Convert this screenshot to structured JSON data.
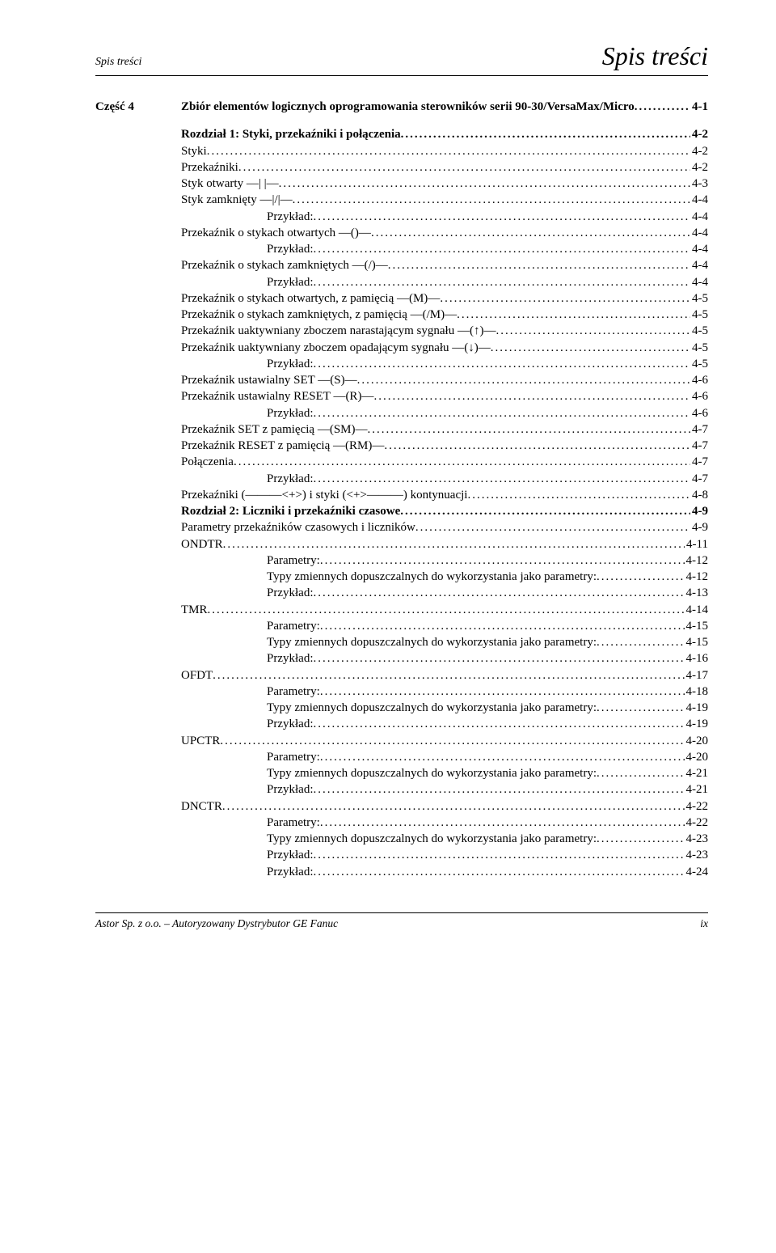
{
  "header": {
    "left": "Spis treści",
    "right": "Spis treści"
  },
  "part": {
    "label": "Część 4",
    "title": "Zbiór elementów logicznych oprogramowania sterowników serii 90-30/VersaMax/Micro",
    "page": "4-1"
  },
  "toc": [
    {
      "level": 0,
      "bold": true,
      "label": "Rozdział 1:  Styki, przekaźniki i połączenia",
      "page": "4-2"
    },
    {
      "level": 1,
      "bold": false,
      "label": "Styki",
      "page": "4-2"
    },
    {
      "level": 1,
      "bold": false,
      "label": "Przekaźniki",
      "page": "4-2"
    },
    {
      "level": 1,
      "bold": false,
      "label": "Styk otwarty —| |—",
      "page": "4-3"
    },
    {
      "level": 1,
      "bold": false,
      "label": "Styk zamknięty —|/|—",
      "page": "4-4"
    },
    {
      "level": 2,
      "bold": false,
      "label": "Przykład:",
      "page": "4-4"
    },
    {
      "level": 1,
      "bold": false,
      "label": "Przekaźnik o stykach otwartych —()—",
      "page": "4-4"
    },
    {
      "level": 2,
      "bold": false,
      "label": "Przykład:",
      "page": "4-4"
    },
    {
      "level": 1,
      "bold": false,
      "label": "Przekaźnik o stykach zamkniętych —(/)—",
      "page": "4-4"
    },
    {
      "level": 2,
      "bold": false,
      "label": "Przykład:",
      "page": "4-4"
    },
    {
      "level": 1,
      "bold": false,
      "label": "Przekaźnik o stykach otwartych, z pamięcią —(M)—",
      "page": "4-5"
    },
    {
      "level": 1,
      "bold": false,
      "label": "Przekaźnik o stykach zamkniętych, z pamięcią —(/M)—",
      "page": "4-5"
    },
    {
      "level": 1,
      "bold": false,
      "label": "Przekaźnik uaktywniany zboczem narastającym sygnału —(↑)—",
      "page": "4-5"
    },
    {
      "level": 1,
      "bold": false,
      "label": "Przekaźnik uaktywniany zboczem opadającym sygnału —(↓)—",
      "page": "4-5"
    },
    {
      "level": 2,
      "bold": false,
      "label": "Przykład:",
      "page": "4-5"
    },
    {
      "level": 1,
      "bold": false,
      "label": "Przekaźnik ustawialny SET —(S)—",
      "page": "4-6"
    },
    {
      "level": 1,
      "bold": false,
      "label": "Przekaźnik ustawialny RESET —(R)—",
      "page": "4-6"
    },
    {
      "level": 2,
      "bold": false,
      "label": "Przykład:",
      "page": "4-6"
    },
    {
      "level": 1,
      "bold": false,
      "label": "Przekaźnik SET z pamięcią —(SM)—",
      "page": "4-7"
    },
    {
      "level": 1,
      "bold": false,
      "label": "Przekaźnik RESET z pamięcią —(RM)—",
      "page": "4-7"
    },
    {
      "level": 1,
      "bold": false,
      "label": "Połączenia",
      "page": "4-7"
    },
    {
      "level": 2,
      "bold": false,
      "label": "Przykład:",
      "page": "4-7"
    },
    {
      "level": 1,
      "bold": false,
      "label": "Przekaźniki (———<+>) i styki (<+>———) kontynuacji",
      "page": "4-8"
    },
    {
      "level": 0,
      "bold": true,
      "label": "Rozdział 2:  Liczniki i przekaźniki czasowe",
      "page": "4-9"
    },
    {
      "level": 1,
      "bold": false,
      "label": "Parametry przekaźników czasowych i liczników",
      "page": "4-9"
    },
    {
      "level": 1,
      "bold": false,
      "label": "ONDTR",
      "page": "4-11"
    },
    {
      "level": 2,
      "bold": false,
      "label": "Parametry:",
      "page": "4-12"
    },
    {
      "level": 2,
      "bold": false,
      "label": "Typy zmiennych dopuszczalnych do wykorzystania jako parametry:",
      "page": "4-12"
    },
    {
      "level": 2,
      "bold": false,
      "label": "Przykład:",
      "page": "4-13"
    },
    {
      "level": 1,
      "bold": false,
      "label": "TMR",
      "page": "4-14"
    },
    {
      "level": 2,
      "bold": false,
      "label": "Parametry:",
      "page": "4-15"
    },
    {
      "level": 2,
      "bold": false,
      "label": "Typy zmiennych dopuszczalnych do wykorzystania jako parametry:",
      "page": "4-15"
    },
    {
      "level": 2,
      "bold": false,
      "label": "Przykład:",
      "page": "4-16"
    },
    {
      "level": 1,
      "bold": false,
      "label": "OFDT",
      "page": "4-17"
    },
    {
      "level": 2,
      "bold": false,
      "label": "Parametry:",
      "page": "4-18"
    },
    {
      "level": 2,
      "bold": false,
      "label": "Typy zmiennych dopuszczalnych do wykorzystania jako parametry:",
      "page": "4-19"
    },
    {
      "level": 2,
      "bold": false,
      "label": "Przykład:",
      "page": "4-19"
    },
    {
      "level": 1,
      "bold": false,
      "label": "UPCTR",
      "page": "4-20"
    },
    {
      "level": 2,
      "bold": false,
      "label": "Parametry:",
      "page": "4-20"
    },
    {
      "level": 2,
      "bold": false,
      "label": "Typy zmiennych dopuszczalnych do wykorzystania jako parametry:",
      "page": "4-21"
    },
    {
      "level": 2,
      "bold": false,
      "label": "Przykład:",
      "page": "4-21"
    },
    {
      "level": 1,
      "bold": false,
      "label": "DNCTR",
      "page": "4-22"
    },
    {
      "level": 2,
      "bold": false,
      "label": "Parametry:",
      "page": "4-22"
    },
    {
      "level": 2,
      "bold": false,
      "label": "Typy zmiennych dopuszczalnych do wykorzystania jako parametry:",
      "page": "4-23"
    },
    {
      "level": 2,
      "bold": false,
      "label": "Przykład:",
      "page": "4-23"
    },
    {
      "level": 2,
      "bold": false,
      "label": "Przykład:",
      "page": "4-24"
    }
  ],
  "footer": {
    "left": "Astor Sp. z o.o. – Autoryzowany Dystrybutor GE Fanuc",
    "right": "ix"
  }
}
